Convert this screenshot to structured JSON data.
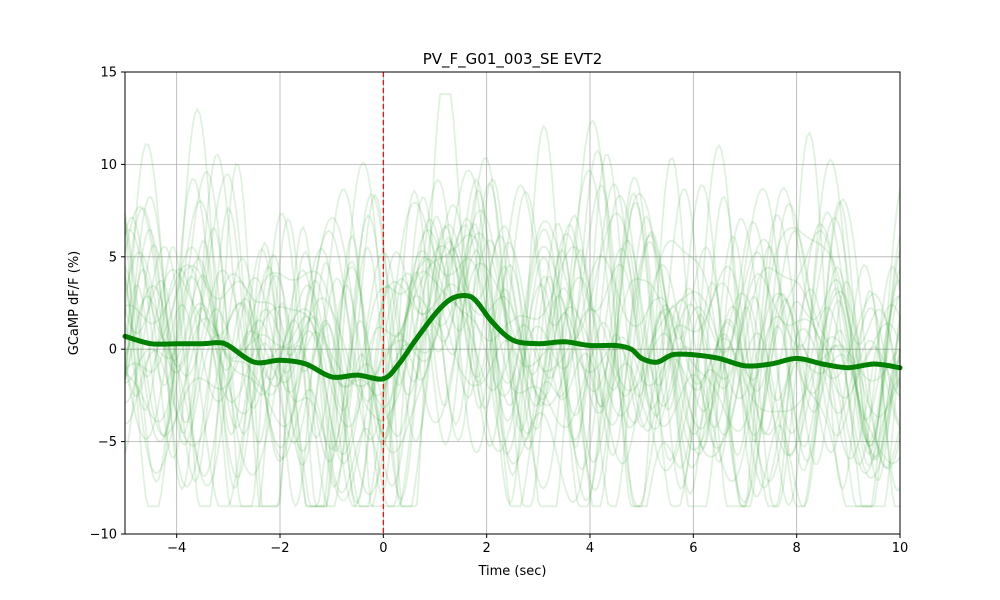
{
  "chart_data": {
    "type": "line",
    "title": "PV_F_G01_003_SE EVT2",
    "xlabel": "Time (sec)",
    "ylabel": "GCaMP dF/F (%)",
    "xlim": [
      -5,
      10
    ],
    "ylim": [
      -10,
      15
    ],
    "xticks": [
      -4,
      -2,
      0,
      2,
      4,
      6,
      8,
      10
    ],
    "xtick_labels": [
      "−4",
      "−2",
      "0",
      "2",
      "4",
      "6",
      "8",
      "10"
    ],
    "yticks": [
      -10,
      -5,
      0,
      5,
      10,
      15
    ],
    "ytick_labels": [
      "−10",
      "−5",
      "0",
      "5",
      "10",
      "15"
    ],
    "grid": true,
    "event_line": {
      "x": 0,
      "color": "#ff0000",
      "style": "dashed"
    },
    "colors": {
      "mean": "#008000",
      "trials": "#2ca02c"
    },
    "mean_trace": {
      "x": [
        -5,
        -4.5,
        -4,
        -3.5,
        -3.2,
        -3,
        -2.5,
        -2,
        -1.5,
        -1,
        -0.5,
        0,
        0.3,
        0.6,
        1,
        1.3,
        1.6,
        1.8,
        2.1,
        2.5,
        3,
        3.5,
        4,
        4.5,
        4.8,
        5,
        5.3,
        5.6,
        6,
        6.5,
        7,
        7.5,
        8,
        8.5,
        9,
        9.5,
        10
      ],
      "y": [
        0.7,
        0.3,
        0.3,
        0.3,
        0.35,
        0.2,
        -0.7,
        -0.6,
        -0.8,
        -1.5,
        -1.4,
        -1.6,
        -0.8,
        0.4,
        1.9,
        2.7,
        2.9,
        2.6,
        1.5,
        0.5,
        0.3,
        0.4,
        0.2,
        0.2,
        0.0,
        -0.5,
        -0.7,
        -0.3,
        -0.3,
        -0.5,
        -0.9,
        -0.8,
        -0.5,
        -0.8,
        -1.0,
        -0.8,
        -1.0
      ]
    },
    "trial_count": 30
  }
}
